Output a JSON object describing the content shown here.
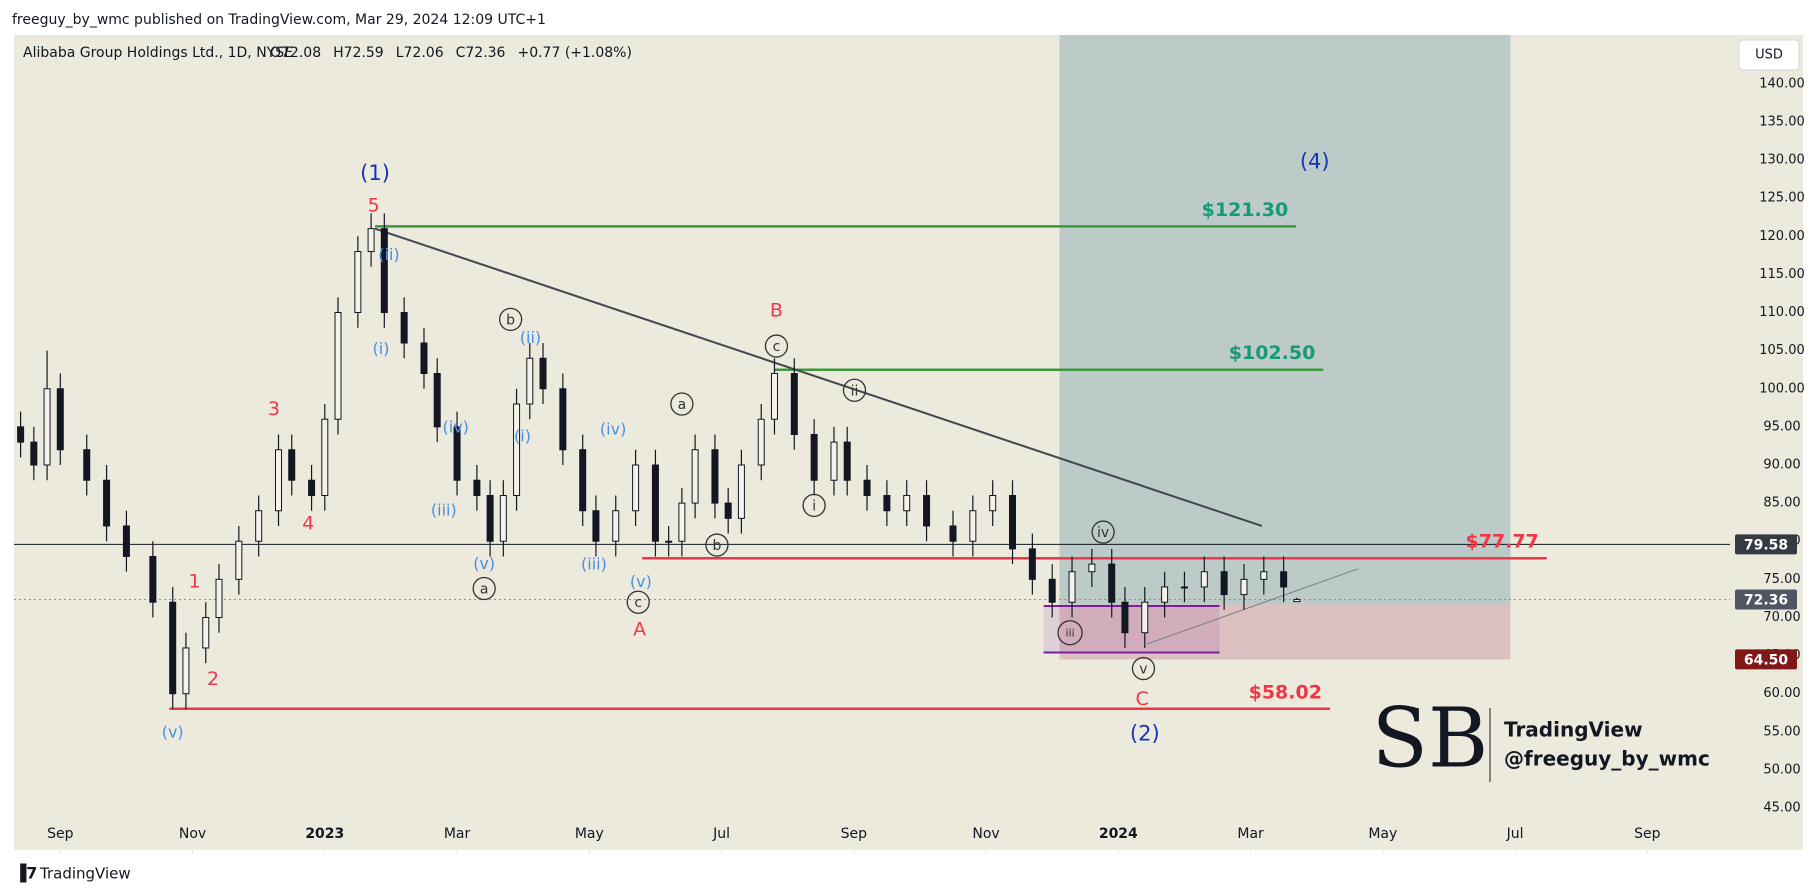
{
  "header": {
    "published": "freeguy_by_wmc published on TradingView.com, Mar 29, 2024 12:09 UTC+1"
  },
  "footer": {
    "brand": "TradingView"
  },
  "watermark": {
    "logo": "SB",
    "lines": [
      "TradingView",
      "@freeguy_by_wmc"
    ]
  },
  "chart_data": {
    "type": "candlestick",
    "title": "Alibaba Group Holdings Ltd., 1D, NYSE",
    "ohlc_legend": [
      "O72.08",
      "H72.59",
      "L72.06",
      "C72.36",
      "+0.77 (+1.08%)"
    ],
    "currency": "USD",
    "x": [
      7.4,
      7.6,
      7.8,
      8.0,
      8.4,
      8.7,
      9.0,
      9.4,
      9.7,
      9.9,
      10.2,
      10.4,
      10.7,
      11.0,
      11.3,
      11.5,
      11.8,
      12.0,
      12.2,
      12.5,
      12.7,
      12.9,
      13.2,
      13.5,
      13.7,
      14.0,
      14.3,
      14.5,
      14.7,
      14.9,
      15.1,
      15.3,
      15.6,
      15.9,
      16.1,
      16.4,
      16.7,
      17.0,
      17.2,
      17.4,
      17.6,
      17.9,
      18.1,
      18.3,
      18.6,
      18.8,
      19.1,
      19.4,
      19.7,
      19.9,
      20.2,
      20.5,
      20.8,
      21.1,
      21.5,
      21.8,
      22.1,
      22.4,
      22.7,
      23.0,
      23.3,
      23.6,
      23.9,
      24.1,
      24.4,
      24.7,
      25.0,
      25.3,
      25.6,
      25.9,
      26.2,
      26.5,
      26.7
    ],
    "open": [
      95,
      93,
      90,
      100,
      92,
      88,
      82,
      78,
      72,
      60,
      66,
      70,
      75,
      80,
      84,
      92,
      88,
      86,
      96,
      110,
      118,
      121,
      110,
      106,
      102,
      95,
      88,
      86,
      80,
      86,
      98,
      104,
      100,
      92,
      84,
      80,
      84,
      90,
      80,
      80,
      85,
      92,
      85,
      83,
      90,
      96,
      102,
      94,
      88,
      93,
      88,
      86,
      84,
      86,
      82,
      80,
      84,
      86,
      79,
      75,
      72,
      76,
      77,
      72,
      68,
      72,
      74,
      74,
      76,
      73,
      75,
      76,
      72.08
    ],
    "high": [
      97,
      95,
      105,
      102,
      94,
      90,
      84,
      80,
      74,
      68,
      72,
      77,
      82,
      86,
      94,
      94,
      90,
      98,
      112,
      120,
      123,
      123,
      112,
      108,
      104,
      97,
      90,
      88,
      88,
      100,
      106,
      106,
      102,
      94,
      86,
      86,
      92,
      92,
      82,
      87,
      94,
      94,
      87,
      92,
      98,
      104,
      104,
      96,
      95,
      95,
      90,
      88,
      88,
      88,
      84,
      86,
      88,
      88,
      81,
      77,
      78,
      79,
      79,
      74,
      74,
      76,
      76,
      78,
      78,
      77,
      78,
      78,
      72.59
    ],
    "low": [
      91,
      88,
      88,
      90,
      86,
      80,
      76,
      70,
      58,
      58,
      64,
      68,
      73,
      78,
      82,
      86,
      84,
      84,
      94,
      108,
      116,
      108,
      104,
      100,
      93,
      86,
      84,
      78,
      78,
      84,
      96,
      98,
      90,
      82,
      78,
      78,
      82,
      78,
      78,
      78,
      83,
      83,
      81,
      81,
      88,
      94,
      92,
      86,
      86,
      86,
      84,
      82,
      82,
      80,
      78,
      78,
      82,
      77,
      73,
      70,
      70,
      74,
      70,
      66,
      66,
      70,
      72,
      72,
      71,
      71,
      73,
      72,
      72.06
    ],
    "close": [
      93,
      90,
      100,
      92,
      88,
      82,
      78,
      72,
      60,
      66,
      70,
      75,
      80,
      84,
      92,
      88,
      86,
      96,
      110,
      118,
      121,
      110,
      106,
      102,
      95,
      88,
      86,
      80,
      86,
      98,
      104,
      100,
      92,
      84,
      80,
      84,
      90,
      80,
      80,
      85,
      92,
      85,
      83,
      90,
      96,
      102,
      94,
      88,
      93,
      88,
      86,
      84,
      86,
      82,
      80,
      84,
      86,
      79,
      75,
      72,
      76,
      77,
      72,
      68,
      72,
      74,
      74,
      76,
      73,
      75,
      76,
      74,
      72.36
    ],
    "colors": {
      "up": "#f4f2ea",
      "down": "#131722",
      "wick": "#131722"
    },
    "xlim": [
      7.3,
      33.25
    ],
    "ylim": [
      39.5,
      146.4
    ],
    "grid": false,
    "xticks": [
      {
        "value": 8,
        "label": "Sep"
      },
      {
        "value": 10,
        "label": "Nov"
      },
      {
        "value": 12,
        "label": "2023"
      },
      {
        "value": 14,
        "label": "Mar"
      },
      {
        "value": 16,
        "label": "May"
      },
      {
        "value": 18,
        "label": "Jul"
      },
      {
        "value": 20,
        "label": "Sep"
      },
      {
        "value": 22,
        "label": "Nov"
      },
      {
        "value": 24,
        "label": "2024"
      },
      {
        "value": 26,
        "label": "Mar"
      },
      {
        "value": 28,
        "label": "May"
      },
      {
        "value": 30,
        "label": "Jul"
      },
      {
        "value": 32,
        "label": "Sep"
      }
    ],
    "yticks": [
      {
        "value": 45,
        "label": "45.00"
      },
      {
        "value": 50,
        "label": "50.00"
      },
      {
        "value": 55,
        "label": "55.00"
      },
      {
        "value": 60,
        "label": "60.00"
      },
      {
        "value": 65,
        "label": "65.00"
      },
      {
        "value": 70,
        "label": "70.00"
      },
      {
        "value": 75,
        "label": "75.00"
      },
      {
        "value": 80,
        "label": "80.00"
      },
      {
        "value": 85,
        "label": "85.00"
      },
      {
        "value": 90,
        "label": "90.00"
      },
      {
        "value": 95,
        "label": "95.00"
      },
      {
        "value": 100,
        "label": "100.00"
      },
      {
        "value": 105,
        "label": "105.00"
      },
      {
        "value": 110,
        "label": "110.00"
      },
      {
        "value": 115,
        "label": "115.00"
      },
      {
        "value": 120,
        "label": "120.00"
      },
      {
        "value": 125,
        "label": "125.00"
      },
      {
        "value": 130,
        "label": "130.00"
      },
      {
        "value": 135,
        "label": "135.00"
      },
      {
        "value": 140,
        "label": "140.00"
      }
    ],
    "position": {
      "x": [
        23.11,
        29.93
      ],
      "target": 150,
      "entry": 71.7,
      "stop": 64.5,
      "target_color": "#b4c4c4",
      "stop_color": "#dcbcbc"
    },
    "box": {
      "x": [
        22.87,
        25.53
      ],
      "y": [
        65.4,
        71.5
      ],
      "color": "#7b1fa2"
    },
    "hlines": [
      {
        "value": 79.58,
        "color": "#131722",
        "dash": "none"
      },
      {
        "value": 72.36,
        "color": "#8a8f99",
        "dash": "2 3"
      }
    ],
    "trendlines": [
      {
        "x": [
          12.76,
          26.17
        ],
        "y": [
          121,
          82
        ],
        "color": "#434651",
        "width": 2
      },
      {
        "x": [
          24.43,
          27.63
        ],
        "y": [
          66.5,
          76.4
        ],
        "color": "#7a7e88",
        "width": 1
      }
    ],
    "levels": [
      {
        "value": 121.3,
        "x": [
          12.76,
          26.69
        ],
        "label": "$121.30",
        "color": "#3a9a3a",
        "label_color": "#159a7a"
      },
      {
        "value": 102.5,
        "x": [
          18.8,
          27.1
        ],
        "label": "$102.50",
        "color": "#3a9a3a",
        "label_color": "#159a7a"
      },
      {
        "value": 77.77,
        "x": [
          16.8,
          30.48
        ],
        "label": "$77.77",
        "color": "#f23645",
        "label_color": "#f23645"
      },
      {
        "value": 58.02,
        "x": [
          9.65,
          27.2
        ],
        "label": "$58.02",
        "color": "#f23645",
        "label_color": "#f23645"
      }
    ],
    "price_labels": [
      {
        "value": 79.58,
        "label": "79.58",
        "color": "#363a45"
      },
      {
        "value": 72.36,
        "label": "72.36",
        "color": "#4f5562"
      },
      {
        "value": 64.5,
        "label": "64.50",
        "color": "#801818"
      }
    ],
    "annotations": [
      {
        "color": "#1535b8",
        "size": 21,
        "circled": false,
        "items": [
          {
            "text": "(1)",
            "x": 12.76,
            "y": 128.3
          },
          {
            "text": "(2)",
            "x": 24.4,
            "y": 54.8
          },
          {
            "text": "(4)",
            "x": 26.97,
            "y": 129.8
          }
        ]
      },
      {
        "color": "#f23645",
        "size": 19,
        "circled": false,
        "items": [
          {
            "text": "5",
            "x": 12.74,
            "y": 124.1
          },
          {
            "text": "3",
            "x": 11.23,
            "y": 97.4
          },
          {
            "text": "4",
            "x": 11.75,
            "y": 82.4
          },
          {
            "text": "1",
            "x": 10.03,
            "y": 74.8
          },
          {
            "text": "2",
            "x": 10.31,
            "y": 62.0
          },
          {
            "text": "A",
            "x": 16.76,
            "y": 68.5
          },
          {
            "text": "B",
            "x": 18.83,
            "y": 110.3
          },
          {
            "text": "C",
            "x": 24.36,
            "y": 59.4
          }
        ]
      },
      {
        "color": "#4a8fe0",
        "size": 16,
        "circled": false,
        "items": [
          {
            "text": "(ii)",
            "x": 12.97,
            "y": 117.6
          },
          {
            "text": "(i)",
            "x": 12.85,
            "y": 105.3
          },
          {
            "text": "(v)",
            "x": 9.7,
            "y": 55.0
          },
          {
            "text": "(iv)",
            "x": 13.98,
            "y": 95.0
          },
          {
            "text": "(iii)",
            "x": 13.8,
            "y": 84.1
          },
          {
            "text": "(v)",
            "x": 14.41,
            "y": 77.1
          },
          {
            "text": "(ii)",
            "x": 15.11,
            "y": 106.7
          },
          {
            "text": "(i)",
            "x": 14.99,
            "y": 93.8
          },
          {
            "text": "(iv)",
            "x": 16.36,
            "y": 94.7
          },
          {
            "text": "(iii)",
            "x": 16.07,
            "y": 77.0
          },
          {
            "text": "(v)",
            "x": 16.78,
            "y": 74.7
          }
        ]
      },
      {
        "color": "#333333",
        "size": 14,
        "circled": true,
        "items": [
          {
            "text": "a",
            "x": 14.41,
            "y": 73.8
          },
          {
            "text": "b",
            "x": 14.81,
            "y": 109.1
          },
          {
            "text": "c",
            "x": 16.74,
            "y": 72.0
          },
          {
            "text": "a",
            "x": 17.4,
            "y": 98.0
          },
          {
            "text": "b",
            "x": 17.93,
            "y": 79.5
          },
          {
            "text": "c",
            "x": 18.83,
            "y": 105.6
          },
          {
            "text": "i",
            "x": 19.4,
            "y": 84.7
          },
          {
            "text": "ii",
            "x": 20.01,
            "y": 99.8
          },
          {
            "text": "iv",
            "x": 23.77,
            "y": 81.2
          },
          {
            "text": "iii",
            "x": 23.27,
            "y": 68.0
          },
          {
            "text": "v",
            "x": 24.38,
            "y": 63.3
          }
        ]
      }
    ]
  }
}
